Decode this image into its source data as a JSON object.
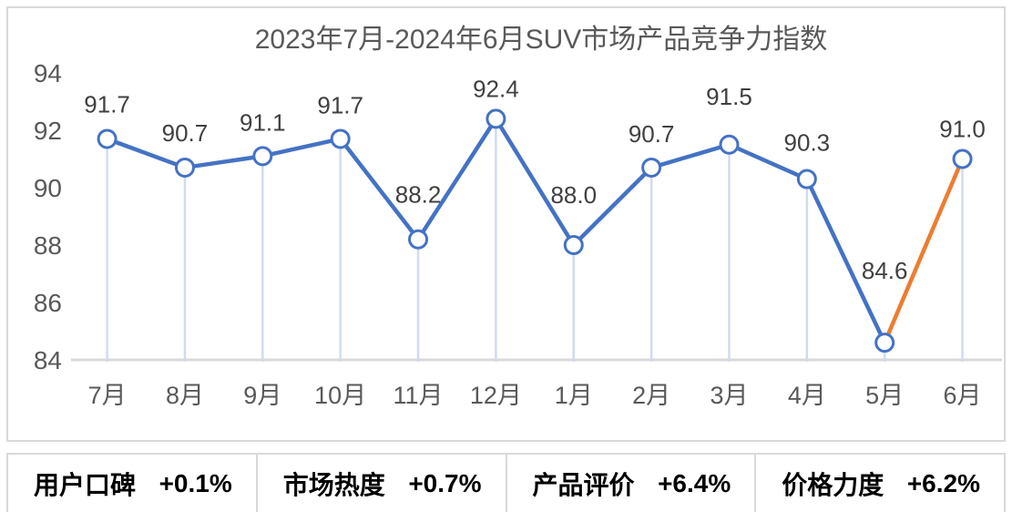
{
  "chart": {
    "title": "2023年7月-2024年6月SUV市场产品竞争力指数"
  },
  "chart_data": {
    "type": "line",
    "title": "2023年7月-2024年6月SUV市场产品竞争力指数",
    "categories": [
      "7月",
      "8月",
      "9月",
      "10月",
      "11月",
      "12月",
      "1月",
      "2月",
      "3月",
      "4月",
      "5月",
      "6月"
    ],
    "values": [
      91.7,
      90.7,
      91.1,
      91.7,
      88.2,
      92.4,
      88.0,
      90.7,
      91.5,
      90.3,
      84.6,
      91.0
    ],
    "ylim": [
      84,
      94
    ],
    "yticks": [
      84,
      86,
      88,
      90,
      92,
      94
    ],
    "grid": false,
    "legend": "none",
    "data_labels": [
      "91.7",
      "90.7",
      "91.1",
      "91.7",
      "88.2",
      "92.4",
      "88.0",
      "90.7",
      "91.5",
      "90.3",
      "84.6",
      "91.0"
    ],
    "label_dy": [
      29,
      29,
      28,
      28,
      40,
      24,
      46,
      28,
      44,
      31,
      70,
      24
    ],
    "line_color": "#4472C4",
    "highlight_last_segment_color": "#ED7D31",
    "marker_fill": "#FFFFFF",
    "marker_stroke": "#4472C4",
    "dropline_color": "#CFDCF0",
    "axis_color": "#D9D9D9",
    "tick_label_color": "#595959",
    "data_label_color": "#404040"
  },
  "stats": {
    "items": [
      {
        "label": "用户口碑",
        "value": "+0.1%"
      },
      {
        "label": "市场热度",
        "value": "+0.7%"
      },
      {
        "label": "产品评价",
        "value": "+6.4%"
      },
      {
        "label": "价格力度",
        "value": "+6.2%"
      }
    ]
  }
}
